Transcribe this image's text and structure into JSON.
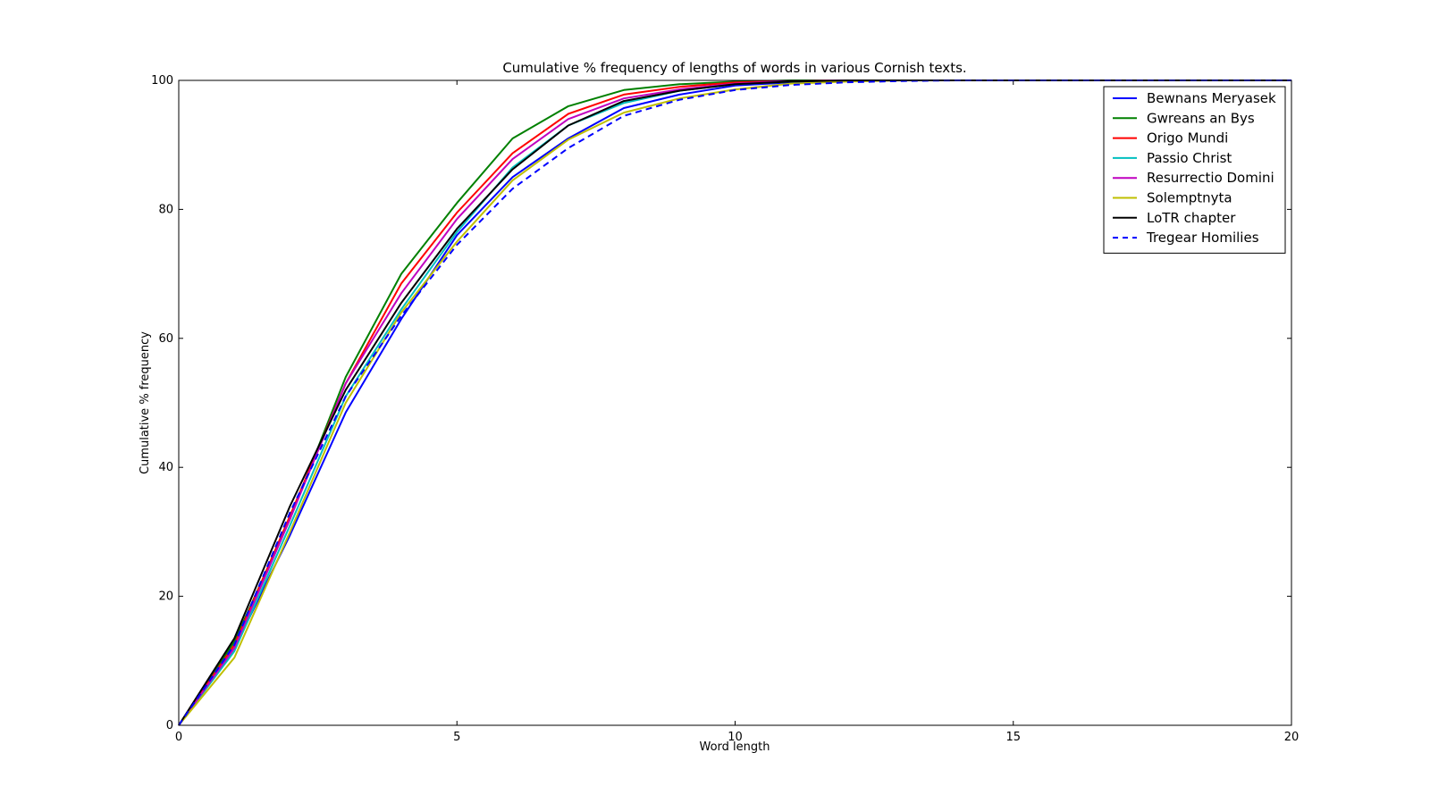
{
  "chart_data": {
    "type": "line",
    "title": "Cumulative % frequency of lengths of words in various Cornish texts.",
    "xlabel": "Word length",
    "ylabel": "Cumulative % frequency",
    "xlim": [
      0,
      20
    ],
    "ylim": [
      0,
      100
    ],
    "xticks": [
      0,
      5,
      10,
      15,
      20
    ],
    "yticks": [
      0,
      20,
      40,
      60,
      80,
      100
    ],
    "grid": false,
    "legend_position": "top-right",
    "x": [
      0,
      1,
      2,
      3,
      4,
      5,
      6,
      7,
      8,
      9,
      10,
      11,
      12,
      13,
      14,
      15,
      16,
      17,
      18,
      19,
      20
    ],
    "series": [
      {
        "name": "Bewnans Meryasek",
        "color": "#0000ff",
        "dashed": false,
        "values": [
          0,
          12,
          29.5,
          48.5,
          63,
          76,
          85,
          91,
          95.7,
          97.8,
          99.2,
          99.7,
          99.9,
          100,
          100,
          100,
          100,
          100,
          100,
          100,
          100
        ]
      },
      {
        "name": "Gwreans an Bys",
        "color": "#008000",
        "dashed": false,
        "values": [
          0,
          13,
          32,
          54,
          70,
          81,
          91,
          96,
          98.5,
          99.4,
          99.8,
          100,
          100,
          100,
          100,
          100,
          100,
          100,
          100,
          100,
          100
        ]
      },
      {
        "name": "Origo Mundi",
        "color": "#ff0000",
        "dashed": false,
        "values": [
          0,
          12.5,
          32.5,
          53,
          68.5,
          79.5,
          88.7,
          94.8,
          97.8,
          99,
          99.7,
          99.9,
          100,
          100,
          100,
          100,
          100,
          100,
          100,
          100,
          100
        ]
      },
      {
        "name": "Passio Christ",
        "color": "#00bfbf",
        "dashed": false,
        "values": [
          0,
          11.5,
          31,
          51,
          64.5,
          76.5,
          86.5,
          93,
          96.5,
          98.4,
          99.4,
          99.8,
          100,
          100,
          100,
          100,
          100,
          100,
          100,
          100,
          100
        ]
      },
      {
        "name": "Resurrectio Domini",
        "color": "#bf00bf",
        "dashed": false,
        "values": [
          0,
          12,
          32,
          53,
          67,
          78.5,
          87.8,
          94,
          97.2,
          98.6,
          99.5,
          99.9,
          100,
          100,
          100,
          100,
          100,
          100,
          100,
          100,
          100
        ]
      },
      {
        "name": "Solemptnyta",
        "color": "#bfbf00",
        "dashed": false,
        "values": [
          0,
          10.5,
          30,
          50,
          64,
          75,
          84.5,
          90.8,
          95,
          97.2,
          98.6,
          99.5,
          99.8,
          100,
          100,
          100,
          100,
          100,
          100,
          100,
          100
        ]
      },
      {
        "name": "LoTR chapter",
        "color": "#000000",
        "dashed": false,
        "values": [
          0,
          13.5,
          34,
          52,
          65.5,
          77,
          86.2,
          93,
          96.8,
          98.4,
          99.4,
          99.8,
          100,
          100,
          100,
          100,
          100,
          100,
          100,
          100,
          100
        ]
      },
      {
        "name": "Tregear Homilies",
        "color": "#0000ff",
        "dashed": true,
        "values": [
          0,
          12.5,
          33,
          51,
          63.5,
          74.5,
          83.2,
          89.5,
          94.5,
          97,
          98.5,
          99.3,
          99.7,
          99.9,
          100,
          100,
          100,
          100,
          100,
          100,
          100
        ]
      }
    ]
  }
}
